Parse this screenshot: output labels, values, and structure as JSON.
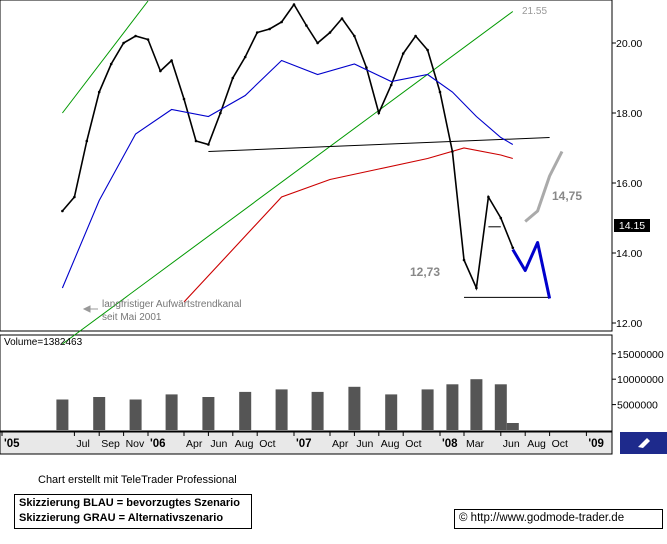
{
  "chart_data": [
    {
      "type": "line",
      "title": "",
      "ylim": [
        11.8,
        21.2
      ],
      "y_ticks": [
        "20.00",
        "18.00",
        "16.00",
        "14.00",
        "12.00"
      ],
      "last_price_label": "14.15",
      "x_ticks": [
        "'05",
        "Jul",
        "Sep",
        "Nov",
        "'06",
        "Apr",
        "Jun",
        "Aug",
        "Oct",
        "'07",
        "Apr",
        "Jun",
        "Aug",
        "Oct",
        "'08",
        "Mar",
        "Jun",
        "Aug",
        "Oct",
        "'09"
      ],
      "grid": false,
      "series": [
        {
          "name": "",
          "role": "price",
          "color": "#000000",
          "x": [
            "2005-06",
            "2005-07",
            "2005-08",
            "2005-09",
            "2005-10",
            "2005-11",
            "2005-12",
            "2006-01",
            "2006-02",
            "2006-03",
            "2006-04",
            "2006-05",
            "2006-06",
            "2006-07",
            "2006-08",
            "2006-09",
            "2006-10",
            "2006-11",
            "2006-12",
            "2007-01",
            "2007-02",
            "2007-03",
            "2007-04",
            "2007-05",
            "2007-06",
            "2007-07",
            "2007-08",
            "2007-09",
            "2007-10",
            "2007-11",
            "2007-12",
            "2008-01",
            "2008-02",
            "2008-03",
            "2008-04",
            "2008-05",
            "2008-06",
            "2008-07"
          ],
          "values": [
            15.2,
            15.6,
            17.2,
            18.6,
            19.4,
            20.0,
            20.2,
            20.1,
            19.2,
            19.5,
            18.4,
            17.2,
            17.1,
            18.0,
            19.0,
            19.6,
            20.3,
            20.4,
            20.6,
            21.1,
            20.5,
            20.0,
            20.3,
            20.7,
            20.2,
            19.3,
            18.0,
            18.8,
            19.7,
            20.2,
            19.8,
            18.6,
            16.9,
            13.8,
            13.0,
            15.6,
            15.0,
            14.15
          ]
        },
        {
          "name": "",
          "role": "moving-average-short",
          "color": "#0000cc",
          "x": [
            "2005-06",
            "2005-09",
            "2005-12",
            "2006-03",
            "2006-06",
            "2006-09",
            "2006-12",
            "2007-03",
            "2007-06",
            "2007-09",
            "2007-12",
            "2008-02",
            "2008-04",
            "2008-06",
            "2008-07"
          ],
          "values": [
            13.0,
            15.5,
            17.4,
            18.1,
            17.9,
            18.5,
            19.5,
            19.1,
            19.4,
            18.9,
            19.1,
            18.6,
            17.9,
            17.3,
            17.1
          ]
        },
        {
          "name": "",
          "role": "moving-average-long",
          "color": "#cc0000",
          "x": [
            "2006-04",
            "2006-08",
            "2006-12",
            "2007-04",
            "2007-08",
            "2007-12",
            "2008-03",
            "2008-06",
            "2008-07"
          ],
          "values": [
            12.6,
            14.1,
            15.6,
            16.1,
            16.4,
            16.7,
            17.0,
            16.8,
            16.7
          ]
        }
      ],
      "trend_lines": [
        {
          "role": "channel-upper",
          "color": "#009900",
          "x": [
            "2005-06",
            "2006-01"
          ],
          "values": [
            18.0,
            21.2
          ]
        },
        {
          "role": "channel-lower",
          "color": "#009900",
          "x": [
            "2005-06",
            "2008-07"
          ],
          "values": [
            11.4,
            20.9
          ]
        },
        {
          "role": "neckline",
          "color": "#000000",
          "x": [
            "2006-06",
            "2008-10"
          ],
          "values": [
            16.9,
            17.3
          ]
        },
        {
          "role": "level-14.75",
          "color": "#000000",
          "x": [
            "2008-05",
            "2008-06"
          ],
          "values": [
            14.75,
            14.75
          ]
        },
        {
          "role": "level-12.73",
          "color": "#000000",
          "x": [
            "2008-03",
            "2008-10"
          ],
          "values": [
            12.73,
            12.73
          ]
        },
        {
          "role": "channel-top-level",
          "color": "#999999",
          "x": [
            "2005-06",
            "2008-10"
          ],
          "values": [
            21.55,
            21.55
          ]
        }
      ],
      "scenarios": [
        {
          "name": "BLAU",
          "color": "#0000cc",
          "x": [
            "2008-07",
            "2008-08",
            "2008-09",
            "2008-10"
          ],
          "values": [
            14.1,
            13.5,
            14.3,
            12.7
          ]
        },
        {
          "name": "GRAU",
          "color": "#aaaaaa",
          "x": [
            "2008-08",
            "2008-09",
            "2008-10",
            "2008-11"
          ],
          "values": [
            14.9,
            15.2,
            16.2,
            16.9
          ]
        }
      ],
      "annotations": {
        "channel_top_value": "21.55",
        "resistance_label": "14,75",
        "target_label": "12,73",
        "trend_note_line1": "langfristiger Aufwärtstrendkanal",
        "trend_note_line2": "seit Mai 2001"
      }
    },
    {
      "type": "bar",
      "title": "Volume=1382463",
      "y_ticks": [
        "15000000",
        "10000000",
        "5000000"
      ],
      "ylim": [
        0,
        18500000
      ],
      "x": [
        "2005-06",
        "2005-09",
        "2005-12",
        "2006-03",
        "2006-06",
        "2006-09",
        "2006-12",
        "2007-03",
        "2007-06",
        "2007-09",
        "2007-12",
        "2008-02",
        "2008-04",
        "2008-06",
        "2008-07"
      ],
      "values": [
        6000000,
        6500000,
        6000000,
        7000000,
        6500000,
        7500000,
        8000000,
        7500000,
        8500000,
        7000000,
        8000000,
        9000000,
        10000000,
        9000000,
        1382463
      ],
      "series_color": "#555555"
    }
  ],
  "footer": {
    "created_note": "Chart erstellt mit TeleTrader Professional",
    "legend_blue": "Skizzierung BLAU = bevorzugtes Szenario",
    "legend_gray": "Skizzierung GRAU = Alternativszenario",
    "source": "© http://www.godmode-trader.de"
  }
}
